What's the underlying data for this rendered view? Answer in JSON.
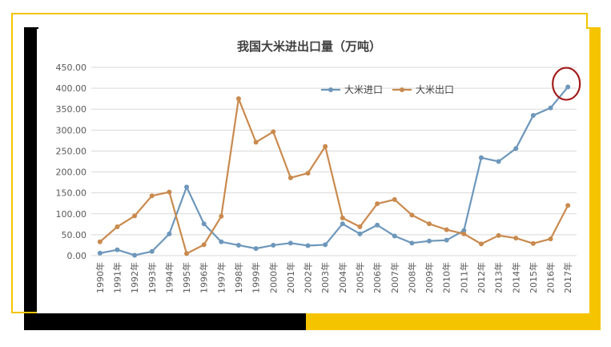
{
  "colors": {
    "import_series": "#6d97bb",
    "export_series": "#c98a4e",
    "accent_yellow": "#f5c400",
    "frame_black": "#000000",
    "highlight_circle": "#a31b1b",
    "grid": "#d9d9d9",
    "axis_text": "#595959"
  },
  "chart_data": {
    "type": "line",
    "title": "我国大米进出口量（万吨）",
    "xlabel": "",
    "ylabel": "",
    "ylim": [
      0,
      450
    ],
    "yticks": [
      "0.00",
      "50.00",
      "100.00",
      "150.00",
      "200.00",
      "250.00",
      "300.00",
      "350.00",
      "400.00",
      "450.00"
    ],
    "grid": "horizontal",
    "legend_position": "top-center",
    "categories": [
      "1990年",
      "1991年",
      "1992年",
      "1993年",
      "1994年",
      "1995年",
      "1996年",
      "1997年",
      "1998年",
      "1999年",
      "2000年",
      "2001年",
      "2002年",
      "2003年",
      "2004年",
      "2005年",
      "2006年",
      "2007年",
      "2008年",
      "2009年",
      "2010年",
      "2011年",
      "2012年",
      "2013年",
      "2014年",
      "2015年",
      "2016年",
      "2017年"
    ],
    "series": [
      {
        "name": "大米进口",
        "values": [
          6,
          14,
          1,
          10,
          52,
          164,
          76,
          33,
          25,
          17,
          25,
          30,
          24,
          26,
          76,
          52,
          73,
          47,
          30,
          35,
          37,
          60,
          234,
          225,
          256,
          335,
          353,
          403
        ]
      },
      {
        "name": "大米出口",
        "values": [
          33,
          69,
          95,
          143,
          152,
          5,
          26,
          94,
          375,
          271,
          296,
          186,
          197,
          261,
          90,
          69,
          124,
          134,
          97,
          76,
          62,
          52,
          28,
          48,
          42,
          29,
          40,
          120
        ]
      }
    ],
    "annotation": "highlight circle around the last point of 大米进口 (2017年)"
  }
}
